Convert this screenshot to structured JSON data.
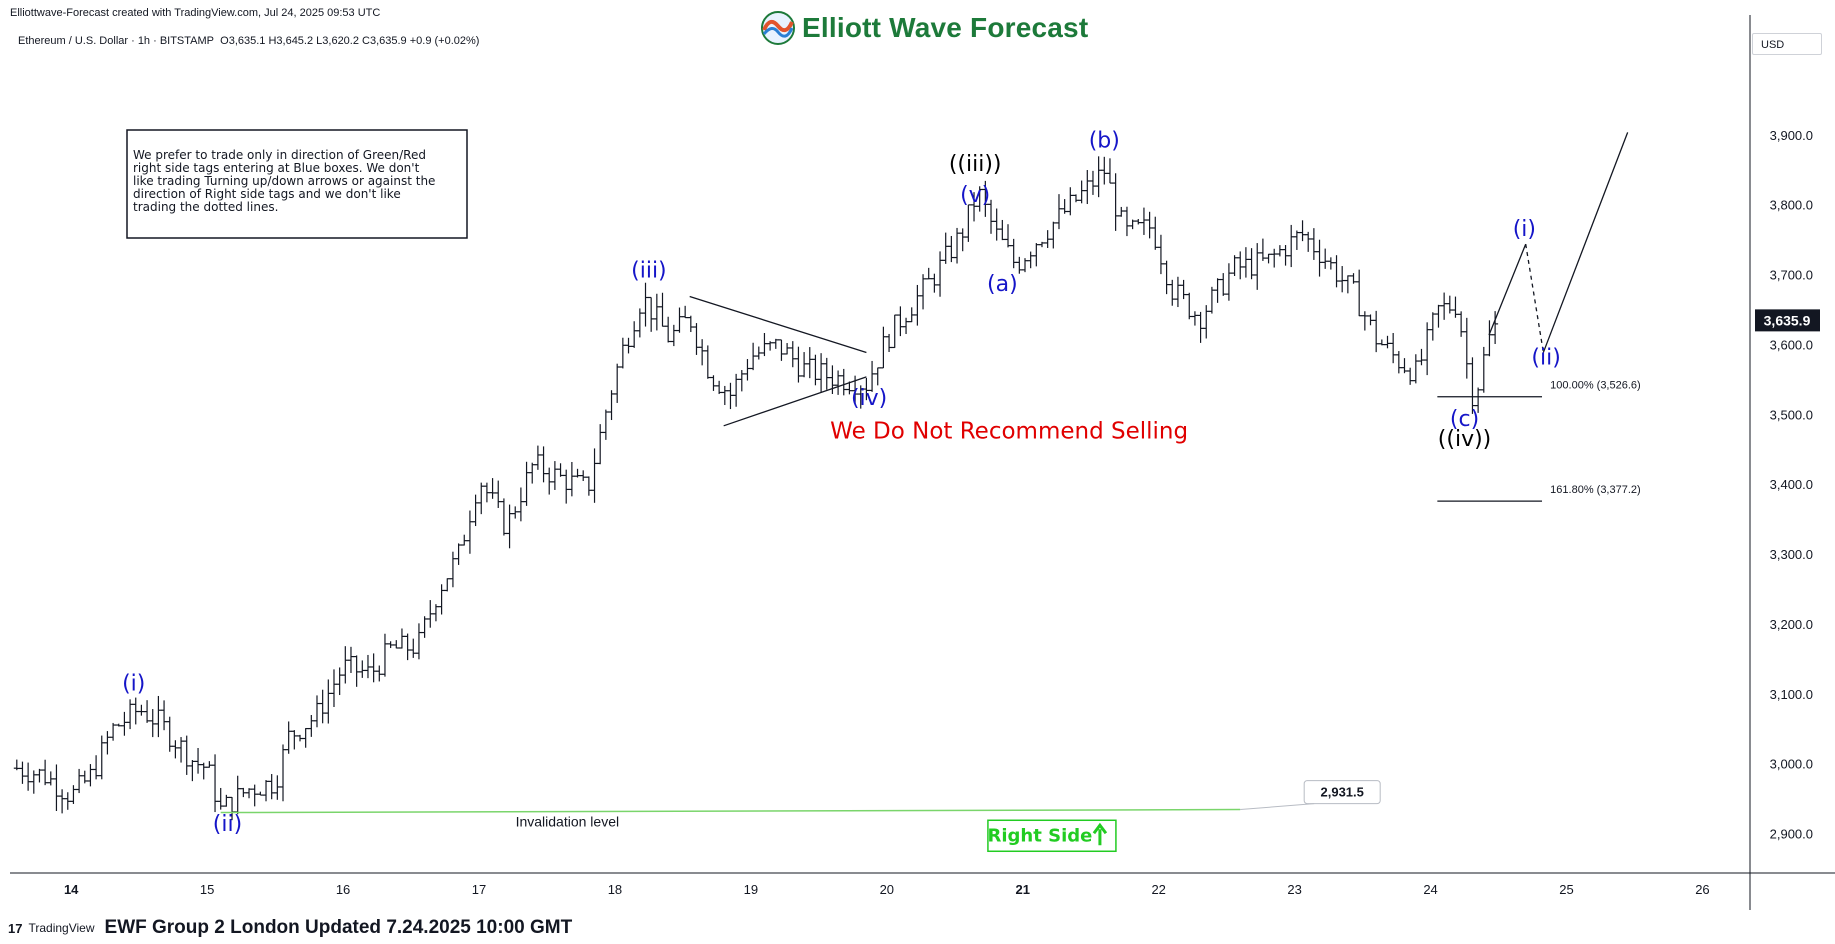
{
  "header": {
    "created_by": "Elliottwave-Forecast created with TradingView.com, Jul 24, 2025 09:53 UTC",
    "symbol": "Ethereum / U.S. Dollar · 1h · BITSTAMP",
    "ohlc": "O3,635.1  H3,645.2  L3,620.2  C3,635.9  +0.9 (+0.02%)",
    "logo_text": "Elliott Wave Forecast",
    "currency": "USD"
  },
  "footer": {
    "tv_mark": "17",
    "tv_label": "TradingView",
    "updated_text": "EWF Group 2 London Updated 7.24.2025 10:00 GMT"
  },
  "colors": {
    "wave_blue": "#1515c8",
    "wave_black": "#000000",
    "warning_red": "#e00000",
    "invalidation_green": "#7ad56b",
    "right_side_green": "#22cc22",
    "bars": "#131722"
  },
  "chart_data": {
    "type": "ohlc-bar",
    "symbol": "Ethereum / U.S. Dollar",
    "timeframe": "1h",
    "exchange": "BITSTAMP",
    "x_ticks": [
      "14",
      "15",
      "16",
      "17",
      "18",
      "19",
      "20",
      "21",
      "22",
      "23",
      "24",
      "25",
      "26"
    ],
    "y_ticks": [
      "3,900.0",
      "3,800.0",
      "3,700.0",
      "3,600.0",
      "3,500.0",
      "3,400.0",
      "3,300.0",
      "3,200.0",
      "3,100.0",
      "3,000.0",
      "2,900.0"
    ],
    "ylim": [
      2845,
      4030
    ],
    "xlim_days": [
      13.55,
      26.35
    ],
    "last_price": "3,635.9",
    "price_path": [
      [
        13.6,
        2995
      ],
      [
        13.8,
        2985
      ],
      [
        14.0,
        2955
      ],
      [
        14.15,
        2985
      ],
      [
        14.3,
        3050
      ],
      [
        14.5,
        3080
      ],
      [
        14.65,
        3060
      ],
      [
        14.9,
        3005
      ],
      [
        15.0,
        2995
      ],
      [
        15.1,
        2935
      ],
      [
        15.3,
        2965
      ],
      [
        15.5,
        2975
      ],
      [
        15.6,
        3040
      ],
      [
        15.8,
        3070
      ],
      [
        16.0,
        3140
      ],
      [
        16.2,
        3130
      ],
      [
        16.35,
        3165
      ],
      [
        16.55,
        3170
      ],
      [
        16.7,
        3250
      ],
      [
        16.85,
        3300
      ],
      [
        17.0,
        3410
      ],
      [
        17.2,
        3340
      ],
      [
        17.4,
        3430
      ],
      [
        17.6,
        3410
      ],
      [
        17.8,
        3395
      ],
      [
        17.95,
        3520
      ],
      [
        18.05,
        3590
      ],
      [
        18.2,
        3670
      ],
      [
        18.4,
        3610
      ],
      [
        18.55,
        3640
      ],
      [
        18.7,
        3560
      ],
      [
        18.85,
        3530
      ],
      [
        19.0,
        3585
      ],
      [
        19.2,
        3600
      ],
      [
        19.4,
        3565
      ],
      [
        19.6,
        3555
      ],
      [
        19.85,
        3545
      ],
      [
        20.0,
        3610
      ],
      [
        20.15,
        3650
      ],
      [
        20.35,
        3700
      ],
      [
        20.55,
        3760
      ],
      [
        20.67,
        3820
      ],
      [
        20.8,
        3760
      ],
      [
        20.95,
        3715
      ],
      [
        21.1,
        3750
      ],
      [
        21.3,
        3790
      ],
      [
        21.6,
        3850
      ],
      [
        21.75,
        3760
      ],
      [
        21.95,
        3770
      ],
      [
        22.1,
        3680
      ],
      [
        22.3,
        3640
      ],
      [
        22.55,
        3710
      ],
      [
        22.8,
        3720
      ],
      [
        23.05,
        3760
      ],
      [
        23.2,
        3730
      ],
      [
        23.45,
        3670
      ],
      [
        23.6,
        3610
      ],
      [
        23.75,
        3580
      ],
      [
        23.9,
        3560
      ],
      [
        24.05,
        3650
      ],
      [
        24.2,
        3660
      ],
      [
        24.25,
        3590
      ],
      [
        24.32,
        3520
      ],
      [
        24.42,
        3605
      ],
      [
        24.5,
        3635.9
      ]
    ],
    "wave_labels": [
      {
        "text": "(i)",
        "x": 14.46,
        "y": 3106,
        "color": "blue"
      },
      {
        "text": "(ii)",
        "x": 15.15,
        "y": 2905,
        "color": "blue"
      },
      {
        "text": "(iii)",
        "x": 18.25,
        "y": 3697,
        "color": "blue"
      },
      {
        "text": "(iv)",
        "x": 19.87,
        "y": 3515,
        "color": "blue"
      },
      {
        "text": "(v)",
        "x": 20.65,
        "y": 3805,
        "color": "blue"
      },
      {
        "text": "((iii))",
        "x": 20.65,
        "y": 3850,
        "color": "black"
      },
      {
        "text": "(a)",
        "x": 20.85,
        "y": 3678,
        "color": "blue"
      },
      {
        "text": "(b)",
        "x": 21.6,
        "y": 3883,
        "color": "blue"
      },
      {
        "text": "(c)",
        "x": 24.25,
        "y": 3485,
        "color": "blue"
      },
      {
        "text": "((iv))",
        "x": 24.25,
        "y": 3456,
        "color": "black"
      },
      {
        "text": "(i)",
        "x": 24.69,
        "y": 3757,
        "color": "blue"
      },
      {
        "text": "(ii)",
        "x": 24.85,
        "y": 3573,
        "color": "blue"
      }
    ],
    "triangle": {
      "upper": [
        [
          18.55,
          3670
        ],
        [
          19.85,
          3590
        ]
      ],
      "lower": [
        [
          18.8,
          3485
        ],
        [
          19.85,
          3555
        ]
      ]
    },
    "projection": {
      "solid_up_1": [
        [
          24.43,
          3615
        ],
        [
          24.7,
          3745
        ]
      ],
      "dotted_down": [
        [
          24.7,
          3745
        ],
        [
          24.83,
          3590
        ]
      ],
      "solid_up_2": [
        [
          24.83,
          3590
        ],
        [
          25.45,
          3905
        ]
      ]
    },
    "fib_levels": [
      {
        "label": "100.00% (3,526.6)",
        "price": 3526.6
      },
      {
        "label": "161.80% (3,377.2)",
        "price": 3377.2
      }
    ],
    "invalidation": {
      "price": 2931.5,
      "label": "2,931.5",
      "text": "Invalidation level"
    },
    "note_box": "We prefer to trade only in direction of Green/Red right side tags entering at Blue boxes. We don't like trading Turning up/down arrows or against the direction of Right side tags and we don't like trading the dotted lines.",
    "recommendation": "We Do Not Recommend Selling",
    "right_side_tag": "Right Side",
    "right_side_direction": "up"
  }
}
